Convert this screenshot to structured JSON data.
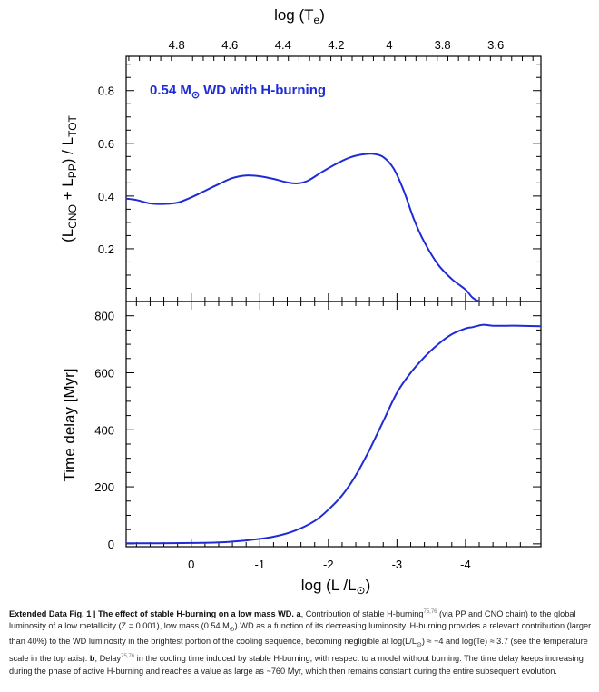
{
  "figure": {
    "top_axis_title": "log (T",
    "top_axis_sub": "e",
    "annotation_text": "0.54 M",
    "annotation_rest": "WD with H-burning",
    "panel_a_ylabel": "(L",
    "panel_a_ylabel_sub1": "CNO",
    "panel_a_ylabel_mid": " + L",
    "panel_a_ylabel_sub2": "PP",
    "panel_a_ylabel_end": ") / L",
    "panel_a_ylabel_sub3": "TOT",
    "panel_b_ylabel": "Time delay [Myr]",
    "bottom_axis_title": "log (L /L",
    "bottom_axis_close": ")",
    "line_color": "#1f2cd6"
  },
  "chart_data": [
    {
      "type": "line",
      "panel": "a",
      "xlabel": "log (L /L⊙)",
      "ylabel": "(LCNO + LPP) / LTOT",
      "top_xlabel": "log (Te)",
      "xlim": [
        0.95,
        -5.1
      ],
      "ylim": [
        0,
        0.93
      ],
      "top_xlim": [
        4.99,
        3.43
      ],
      "xticks": [
        "0",
        "-1",
        "-2",
        "-3",
        "-4"
      ],
      "xtick_values": [
        0,
        -1,
        -2,
        -3,
        -4
      ],
      "yticks": [
        "0.2",
        "0.4",
        "0.6",
        "0.8"
      ],
      "ytick_values": [
        0.2,
        0.4,
        0.6,
        0.8
      ],
      "top_ticks": [
        "4.8",
        "4.6",
        "4.4",
        "4.2",
        "4",
        "3.8",
        "3.6"
      ],
      "top_tick_values": [
        4.8,
        4.6,
        4.4,
        4.2,
        4.0,
        3.8,
        3.6
      ],
      "series": [
        {
          "x": [
            0.95,
            0.8,
            0.6,
            0.4,
            0.2,
            0.0,
            -0.2,
            -0.4,
            -0.6,
            -0.8,
            -1.0,
            -1.2,
            -1.4,
            -1.55,
            -1.7,
            -1.9,
            -2.1,
            -2.3,
            -2.5,
            -2.65,
            -2.8,
            -2.95,
            -3.1,
            -3.25,
            -3.4,
            -3.6,
            -3.8,
            -4.0,
            -4.1,
            -4.2
          ],
          "y": [
            0.39,
            0.385,
            0.372,
            0.37,
            0.375,
            0.395,
            0.42,
            0.445,
            0.468,
            0.478,
            0.475,
            0.465,
            0.452,
            0.448,
            0.458,
            0.49,
            0.52,
            0.545,
            0.558,
            0.56,
            0.548,
            0.505,
            0.42,
            0.31,
            0.225,
            0.14,
            0.085,
            0.045,
            0.015,
            0.0
          ]
        }
      ]
    },
    {
      "type": "line",
      "panel": "b",
      "xlabel": "log (L /L⊙)",
      "ylabel": "Time delay [Myr]",
      "xlim": [
        0.95,
        -5.1
      ],
      "ylim": [
        -10,
        850
      ],
      "xticks": [
        "0",
        "-1",
        "-2",
        "-3",
        "-4"
      ],
      "xtick_values": [
        0,
        -1,
        -2,
        -3,
        -4
      ],
      "yticks": [
        "0",
        "200",
        "400",
        "600",
        "800"
      ],
      "ytick_values": [
        0,
        200,
        400,
        600,
        800
      ],
      "series": [
        {
          "x": [
            0.95,
            0.5,
            0.0,
            -0.4,
            -0.8,
            -1.2,
            -1.5,
            -1.8,
            -2.0,
            -2.2,
            -2.4,
            -2.6,
            -2.8,
            -3.0,
            -3.2,
            -3.4,
            -3.6,
            -3.8,
            -4.0,
            -4.1,
            -4.25,
            -4.4,
            -4.6,
            -4.8,
            -5.1
          ],
          "y": [
            2,
            2,
            3,
            5,
            12,
            25,
            45,
            80,
            120,
            170,
            240,
            330,
            430,
            530,
            600,
            655,
            700,
            735,
            755,
            760,
            768,
            765,
            765,
            765,
            763
          ]
        }
      ]
    }
  ],
  "caption": {
    "title": "Extended Data Fig. 1 | The effect of stable H-burning on a low mass WD.",
    "a_label": "a",
    "a_text": ", Contribution of stable H-burning",
    "a_refs": "75,76",
    "a_text2": " (via PP and CNO chain) to the global luminosity of a low metallicity (Z = 0.001), low mass (0.54 M",
    "a_text3": ") WD as a function of its decreasing luminosity. H-burning provides a relevant contribution (larger than 40%) to the WD luminosity in the brightest portion of the cooling sequence, becoming negligible at log(L/L",
    "a_text4": ") ≈ −4 and log(Te) ≈ 3.7 (see the temperature scale in the top axis).",
    "b_label": "b",
    "b_text": ", Delay",
    "b_refs": "75,76",
    "b_text2": " in the cooling time induced by stable H-burning, with respect to a model without burning. The time delay keeps increasing during the phase of active H-burning and reaches a value as large as ~760 Myr, which then remains constant during the entire subsequent evolution.",
    "sun_symbol": "⊙"
  }
}
